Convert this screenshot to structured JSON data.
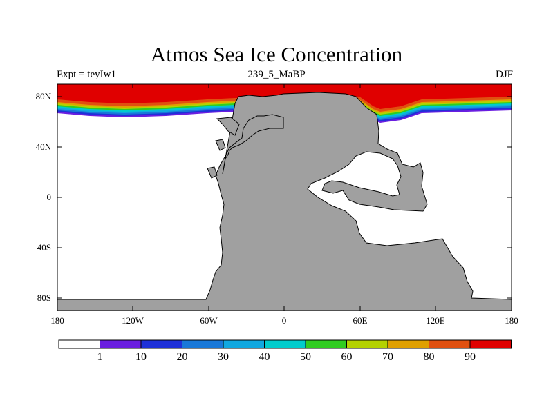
{
  "title": "Atmos Sea Ice Concentration",
  "subtitle_left": "Expt = teyIw1",
  "subtitle_center": "239_5_MaBP",
  "subtitle_right": "DJF",
  "lat_ticks": [
    "80N",
    "40N",
    "0",
    "40S",
    "80S"
  ],
  "lon_ticks": [
    "180",
    "120W",
    "60W",
    "0",
    "60E",
    "120E",
    "180"
  ],
  "colorbar": {
    "labels": [
      "1",
      "10",
      "20",
      "30",
      "40",
      "50",
      "60",
      "70",
      "80",
      "90"
    ],
    "colors": [
      "#ffffff",
      "#6a1ee0",
      "#1e30d8",
      "#1878d8",
      "#10a8e0",
      "#00cccc",
      "#30cc20",
      "#b4d200",
      "#e0a000",
      "#e05010",
      "#e00000"
    ]
  },
  "colors": {
    "land": "#a0a0a0",
    "ocean": "#ffffff",
    "ice_full": "#e00000"
  }
}
